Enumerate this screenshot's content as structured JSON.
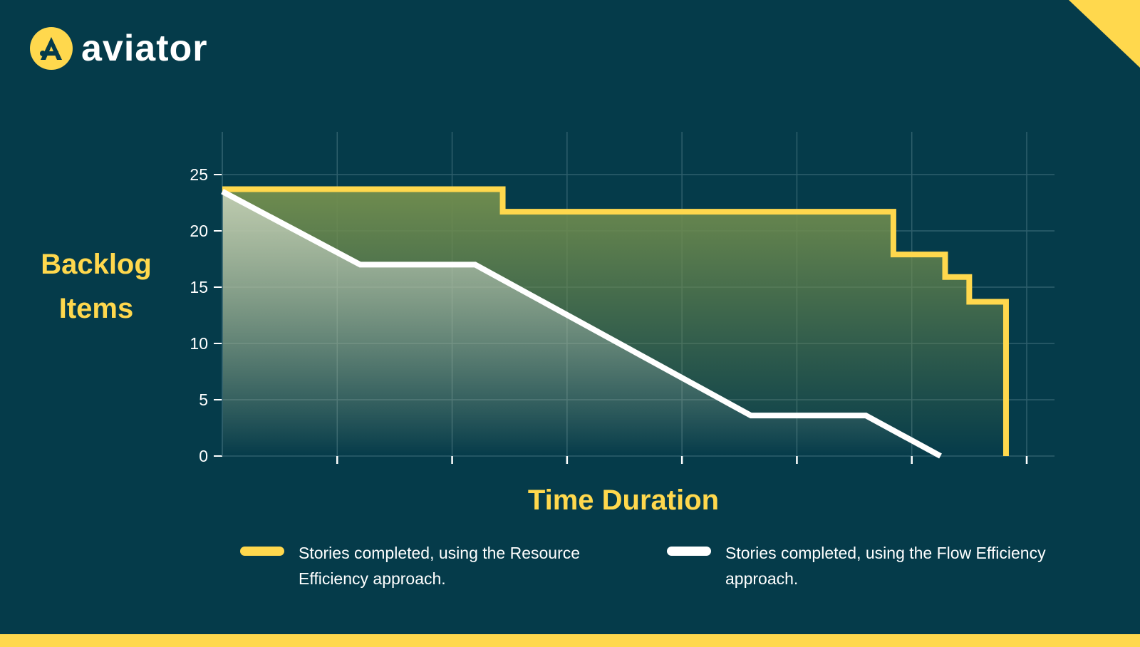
{
  "brand": {
    "name": "aviator",
    "logo_letter": "A"
  },
  "colors": {
    "background": "#053b4a",
    "accent": "#ffd84d",
    "grid": "#2e5f6c",
    "white": "#ffffff"
  },
  "chart_data": {
    "type": "line",
    "xlabel": "Time Duration",
    "ylabel": "Backlog Items",
    "ylim": [
      0,
      25
    ],
    "xlim": [
      0,
      7
    ],
    "yticks": [
      0,
      5,
      10,
      15,
      20,
      25
    ],
    "xticks": [
      1,
      2,
      3,
      4,
      5,
      6,
      7
    ],
    "grid": true,
    "legend_position": "bottom",
    "series": [
      {
        "name": "Stories completed, using the Resource Efficiency approach.",
        "color": "#ffd84d",
        "step": true,
        "points": [
          [
            0,
            23.7
          ],
          [
            2.44,
            23.7
          ],
          [
            2.44,
            21.7
          ],
          [
            5.84,
            21.7
          ],
          [
            5.84,
            17.9
          ],
          [
            6.29,
            17.9
          ],
          [
            6.29,
            15.9
          ],
          [
            6.5,
            15.9
          ],
          [
            6.5,
            13.7
          ],
          [
            6.82,
            13.7
          ],
          [
            6.82,
            0
          ]
        ]
      },
      {
        "name": "Stories completed, using the Flow Efficiency approach.",
        "color": "#ffffff",
        "step": false,
        "points": [
          [
            0,
            23.5
          ],
          [
            1.2,
            17
          ],
          [
            2.2,
            17
          ],
          [
            4.6,
            3.6
          ],
          [
            5.6,
            3.6
          ],
          [
            6.25,
            0
          ]
        ]
      }
    ]
  }
}
